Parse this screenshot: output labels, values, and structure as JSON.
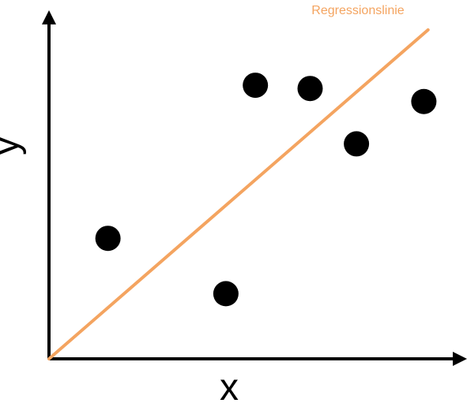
{
  "chart_data": {
    "type": "scatter",
    "xlabel": "x",
    "ylabel": "y",
    "xlim": [
      0,
      10
    ],
    "ylim": [
      0,
      10
    ],
    "points": [
      {
        "x": 1.4,
        "y": 3.7
      },
      {
        "x": 4.2,
        "y": 2.0
      },
      {
        "x": 4.9,
        "y": 8.4
      },
      {
        "x": 6.2,
        "y": 8.3
      },
      {
        "x": 7.3,
        "y": 6.6
      },
      {
        "x": 8.9,
        "y": 7.9
      }
    ],
    "regression_line": {
      "label": "Regressionslinie",
      "color": "#f4a460",
      "x": [
        0,
        9.0
      ],
      "y": [
        0,
        10.1
      ]
    },
    "grid": false,
    "point_color": "#000000",
    "axis_color": "#000000"
  }
}
